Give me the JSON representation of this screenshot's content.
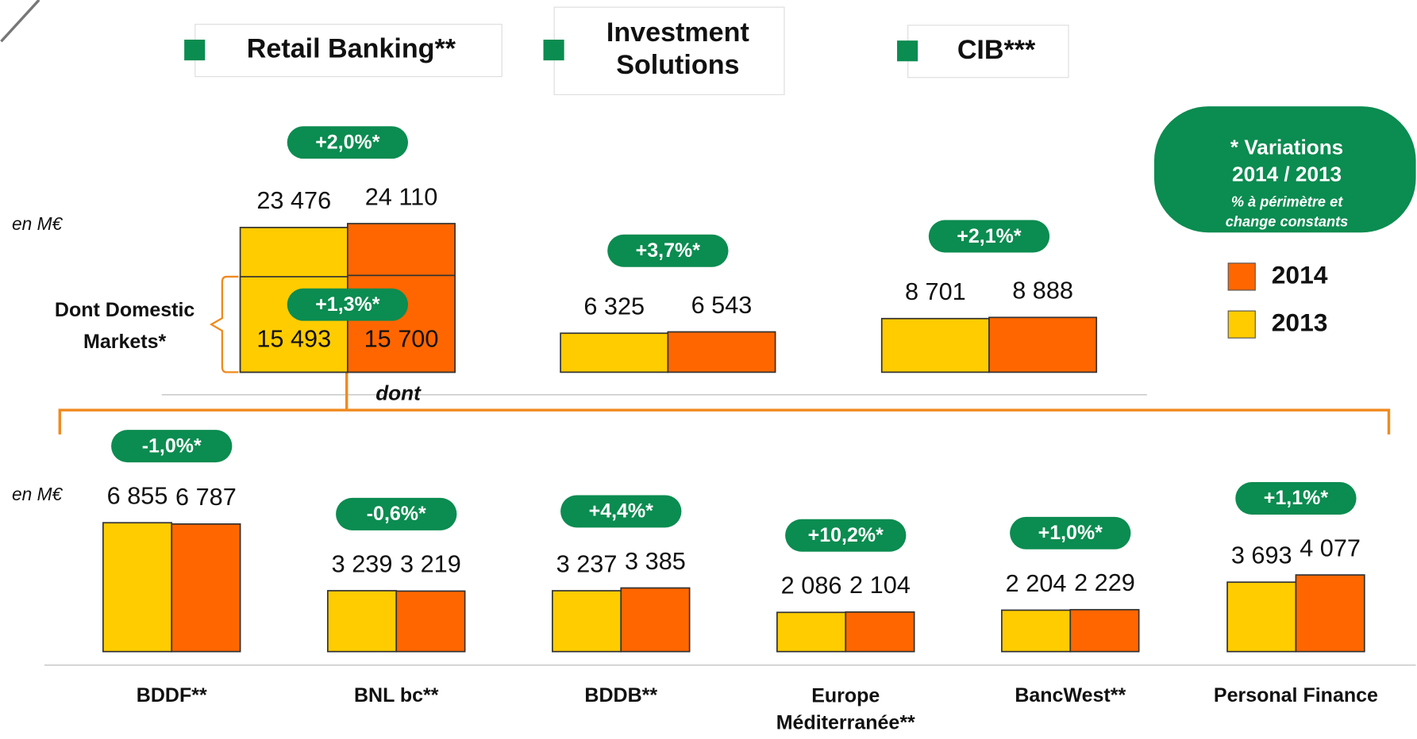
{
  "headers": [
    "Retail Banking**",
    "Investment\nSolutions",
    "CIB***"
  ],
  "note": [
    "* Variations",
    "2014 / 2013",
    "% à périmètre et",
    "change constants"
  ],
  "legend": [
    {
      "name": "2014",
      "color": "#ff6600"
    },
    {
      "name": "2013",
      "color": "#ffcc00"
    }
  ],
  "unit_labels": [
    "en M€",
    "en M€"
  ],
  "link_label": "dont",
  "chart_data": [
    {
      "type": "bar",
      "change": "+2,0%*",
      "values": [
        23476,
        24110
      ],
      "value_labels": [
        "23 476",
        "24 110"
      ],
      "ylim": [
        0,
        25000
      ],
      "sub": {
        "label": "Dont Domestic\nMarkets*",
        "change": "+1,3%*",
        "values": [
          15493,
          15700
        ],
        "value_labels": [
          "15 493",
          "15 700"
        ]
      }
    },
    {
      "type": "bar",
      "change": "+3,7%*",
      "values": [
        6325,
        6543
      ],
      "value_labels": [
        "6 325",
        "6 543"
      ],
      "ylim": [
        0,
        25000
      ]
    },
    {
      "type": "bar",
      "change": "+2,1%*",
      "values": [
        8701,
        8888
      ],
      "value_labels": [
        "8 701",
        "8 888"
      ],
      "ylim": [
        0,
        25000
      ]
    },
    {
      "type": "bar",
      "title": "BDDF**",
      "change": "-1,0%*",
      "values": [
        6855,
        6787
      ],
      "value_labels": [
        "6 855",
        "6 787"
      ],
      "ylim": [
        0,
        7000
      ]
    },
    {
      "type": "bar",
      "title": "BNL bc**",
      "change": "-0,6%*",
      "values": [
        3239,
        3219
      ],
      "value_labels": [
        "3 239",
        "3 219"
      ],
      "ylim": [
        0,
        7000
      ]
    },
    {
      "type": "bar",
      "title": "BDDB**",
      "change": "+4,4%*",
      "values": [
        3237,
        3385
      ],
      "value_labels": [
        "3 237",
        "3 385"
      ],
      "ylim": [
        0,
        7000
      ]
    },
    {
      "type": "bar",
      "title": "Europe\nMéditerranée**",
      "change": "+10,2%*",
      "values": [
        2086,
        2104
      ],
      "value_labels": [
        "2 086",
        "2 104"
      ],
      "ylim": [
        0,
        7000
      ]
    },
    {
      "type": "bar",
      "title": "BancWest**",
      "change": "+1,0%*",
      "values": [
        2204,
        2229
      ],
      "value_labels": [
        "2 204",
        "2 229"
      ],
      "ylim": [
        0,
        7000
      ]
    },
    {
      "type": "bar",
      "title": "Personal Finance",
      "change": "+1,1%*",
      "values": [
        3693,
        4077
      ],
      "value_labels": [
        "3 693",
        "4 077"
      ],
      "ylim": [
        0,
        7000
      ]
    }
  ]
}
